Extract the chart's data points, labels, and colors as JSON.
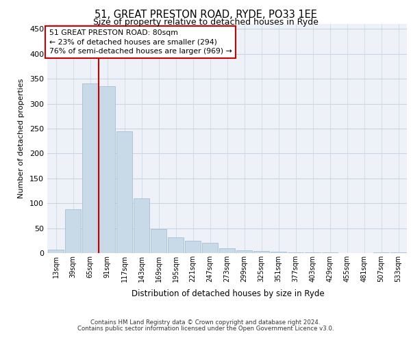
{
  "title_line1": "51, GREAT PRESTON ROAD, RYDE, PO33 1EE",
  "title_line2": "Size of property relative to detached houses in Ryde",
  "xlabel": "Distribution of detached houses by size in Ryde",
  "ylabel": "Number of detached properties",
  "categories": [
    "13sqm",
    "39sqm",
    "65sqm",
    "91sqm",
    "117sqm",
    "143sqm",
    "169sqm",
    "195sqm",
    "221sqm",
    "247sqm",
    "273sqm",
    "299sqm",
    "325sqm",
    "351sqm",
    "377sqm",
    "403sqm",
    "429sqm",
    "455sqm",
    "481sqm",
    "507sqm",
    "533sqm"
  ],
  "values": [
    7,
    88,
    341,
    335,
    245,
    110,
    48,
    32,
    25,
    20,
    10,
    5,
    4,
    3,
    2,
    1,
    1,
    0,
    0,
    1,
    2
  ],
  "bar_color": "#c8d9e8",
  "bar_edge_color": "#9ab8cc",
  "grid_color": "#c8d4e4",
  "background_color": "#eef2f8",
  "vline_color": "#cc0000",
  "vline_pos": 2.5,
  "annotation_text": "51 GREAT PRESTON ROAD: 80sqm\n← 23% of detached houses are smaller (294)\n76% of semi-detached houses are larger (969) →",
  "annotation_box_color": "#ffffff",
  "annotation_box_edge": "#cc0000",
  "ylim": [
    0,
    460
  ],
  "yticks": [
    0,
    50,
    100,
    150,
    200,
    250,
    300,
    350,
    400,
    450
  ],
  "footer_line1": "Contains HM Land Registry data © Crown copyright and database right 2024.",
  "footer_line2": "Contains public sector information licensed under the Open Government Licence v3.0."
}
